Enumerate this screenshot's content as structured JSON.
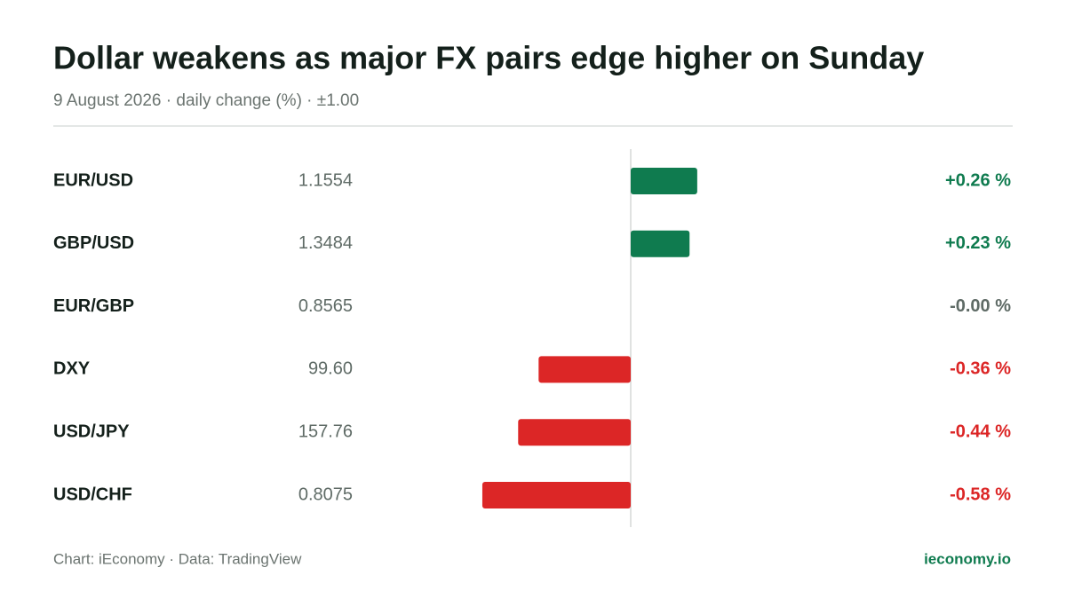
{
  "chart_data": {
    "type": "diverging-bar",
    "title": "Dollar weakens as major FX pairs edge higher on Sunday",
    "subtitle": "9 August 2026 · daily change (%) · ±1.00",
    "categories": [
      "EUR/USD",
      "GBP/USD",
      "EUR/GBP",
      "DXY",
      "USD/JPY",
      "USD/CHF"
    ],
    "prices": [
      "1.1554",
      "1.3484",
      "0.8565",
      "99.60",
      "157.76",
      "0.8075"
    ],
    "values": [
      0.26,
      0.23,
      0,
      -0.36,
      -0.44,
      -0.58
    ],
    "value_labels": [
      "+0.26 %",
      "+0.23 %",
      "-0.00 %",
      "-0.36 %",
      "-0.44 %",
      "-0.58 %"
    ],
    "xlim": [
      -1,
      1
    ],
    "positive_color": "#0f7b4f",
    "negative_color": "#dc2626",
    "neutral_color": "#5f6b66",
    "source": "Chart: iEconomy · Data: TradingView",
    "brand": "ieconomy.io"
  }
}
